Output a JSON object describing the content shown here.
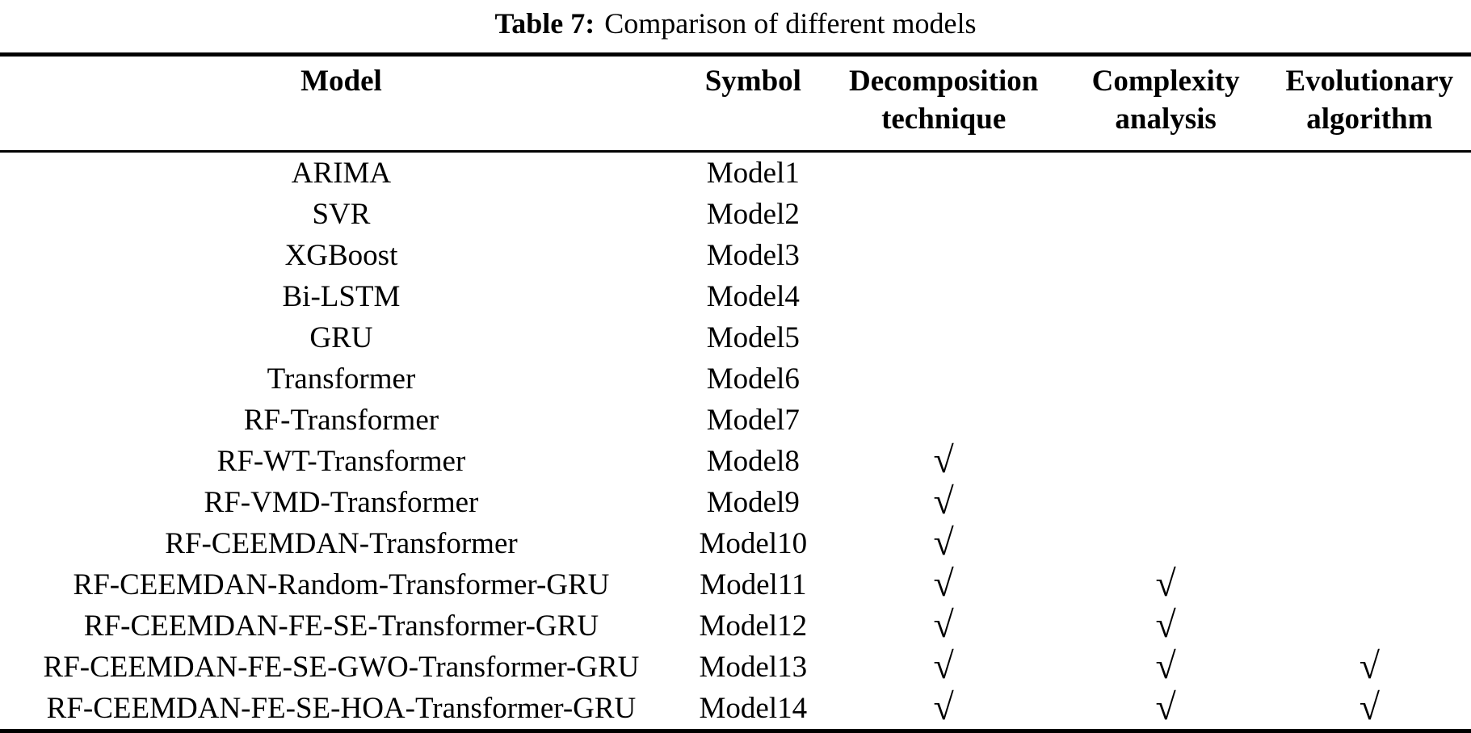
{
  "page": {
    "background_color": "#ffffff",
    "text_color": "#000000",
    "rule_color": "#000000"
  },
  "caption": {
    "label": "Table 7:",
    "text": "Comparison of different models"
  },
  "table": {
    "checkmark_glyph": "√",
    "headers": [
      {
        "top": "Model",
        "bottom": ""
      },
      {
        "top": "Symbol",
        "bottom": ""
      },
      {
        "top": "Decomposition",
        "bottom": "technique"
      },
      {
        "top": "Complexity",
        "bottom": "analysis"
      },
      {
        "top": "Evolutionary",
        "bottom": "algorithm"
      }
    ],
    "rows": [
      {
        "model": "ARIMA",
        "symbol": "Model1",
        "decomposition": false,
        "complexity": false,
        "evolutionary": false
      },
      {
        "model": "SVR",
        "symbol": "Model2",
        "decomposition": false,
        "complexity": false,
        "evolutionary": false
      },
      {
        "model": "XGBoost",
        "symbol": "Model3",
        "decomposition": false,
        "complexity": false,
        "evolutionary": false
      },
      {
        "model": "Bi-LSTM",
        "symbol": "Model4",
        "decomposition": false,
        "complexity": false,
        "evolutionary": false
      },
      {
        "model": "GRU",
        "symbol": "Model5",
        "decomposition": false,
        "complexity": false,
        "evolutionary": false
      },
      {
        "model": "Transformer",
        "symbol": "Model6",
        "decomposition": false,
        "complexity": false,
        "evolutionary": false
      },
      {
        "model": "RF-Transformer",
        "symbol": "Model7",
        "decomposition": false,
        "complexity": false,
        "evolutionary": false
      },
      {
        "model": "RF-WT-Transformer",
        "symbol": "Model8",
        "decomposition": true,
        "complexity": false,
        "evolutionary": false
      },
      {
        "model": "RF-VMD-Transformer",
        "symbol": "Model9",
        "decomposition": true,
        "complexity": false,
        "evolutionary": false
      },
      {
        "model": "RF-CEEMDAN-Transformer",
        "symbol": "Model10",
        "decomposition": true,
        "complexity": false,
        "evolutionary": false
      },
      {
        "model": "RF-CEEMDAN-Random-Transformer-GRU",
        "symbol": "Model11",
        "decomposition": true,
        "complexity": true,
        "evolutionary": false
      },
      {
        "model": "RF-CEEMDAN-FE-SE-Transformer-GRU",
        "symbol": "Model12",
        "decomposition": true,
        "complexity": true,
        "evolutionary": false
      },
      {
        "model": "RF-CEEMDAN-FE-SE-GWO-Transformer-GRU",
        "symbol": "Model13",
        "decomposition": true,
        "complexity": true,
        "evolutionary": true
      },
      {
        "model": "RF-CEEMDAN-FE-SE-HOA-Transformer-GRU",
        "symbol": "Model14",
        "decomposition": true,
        "complexity": true,
        "evolutionary": true
      }
    ]
  }
}
